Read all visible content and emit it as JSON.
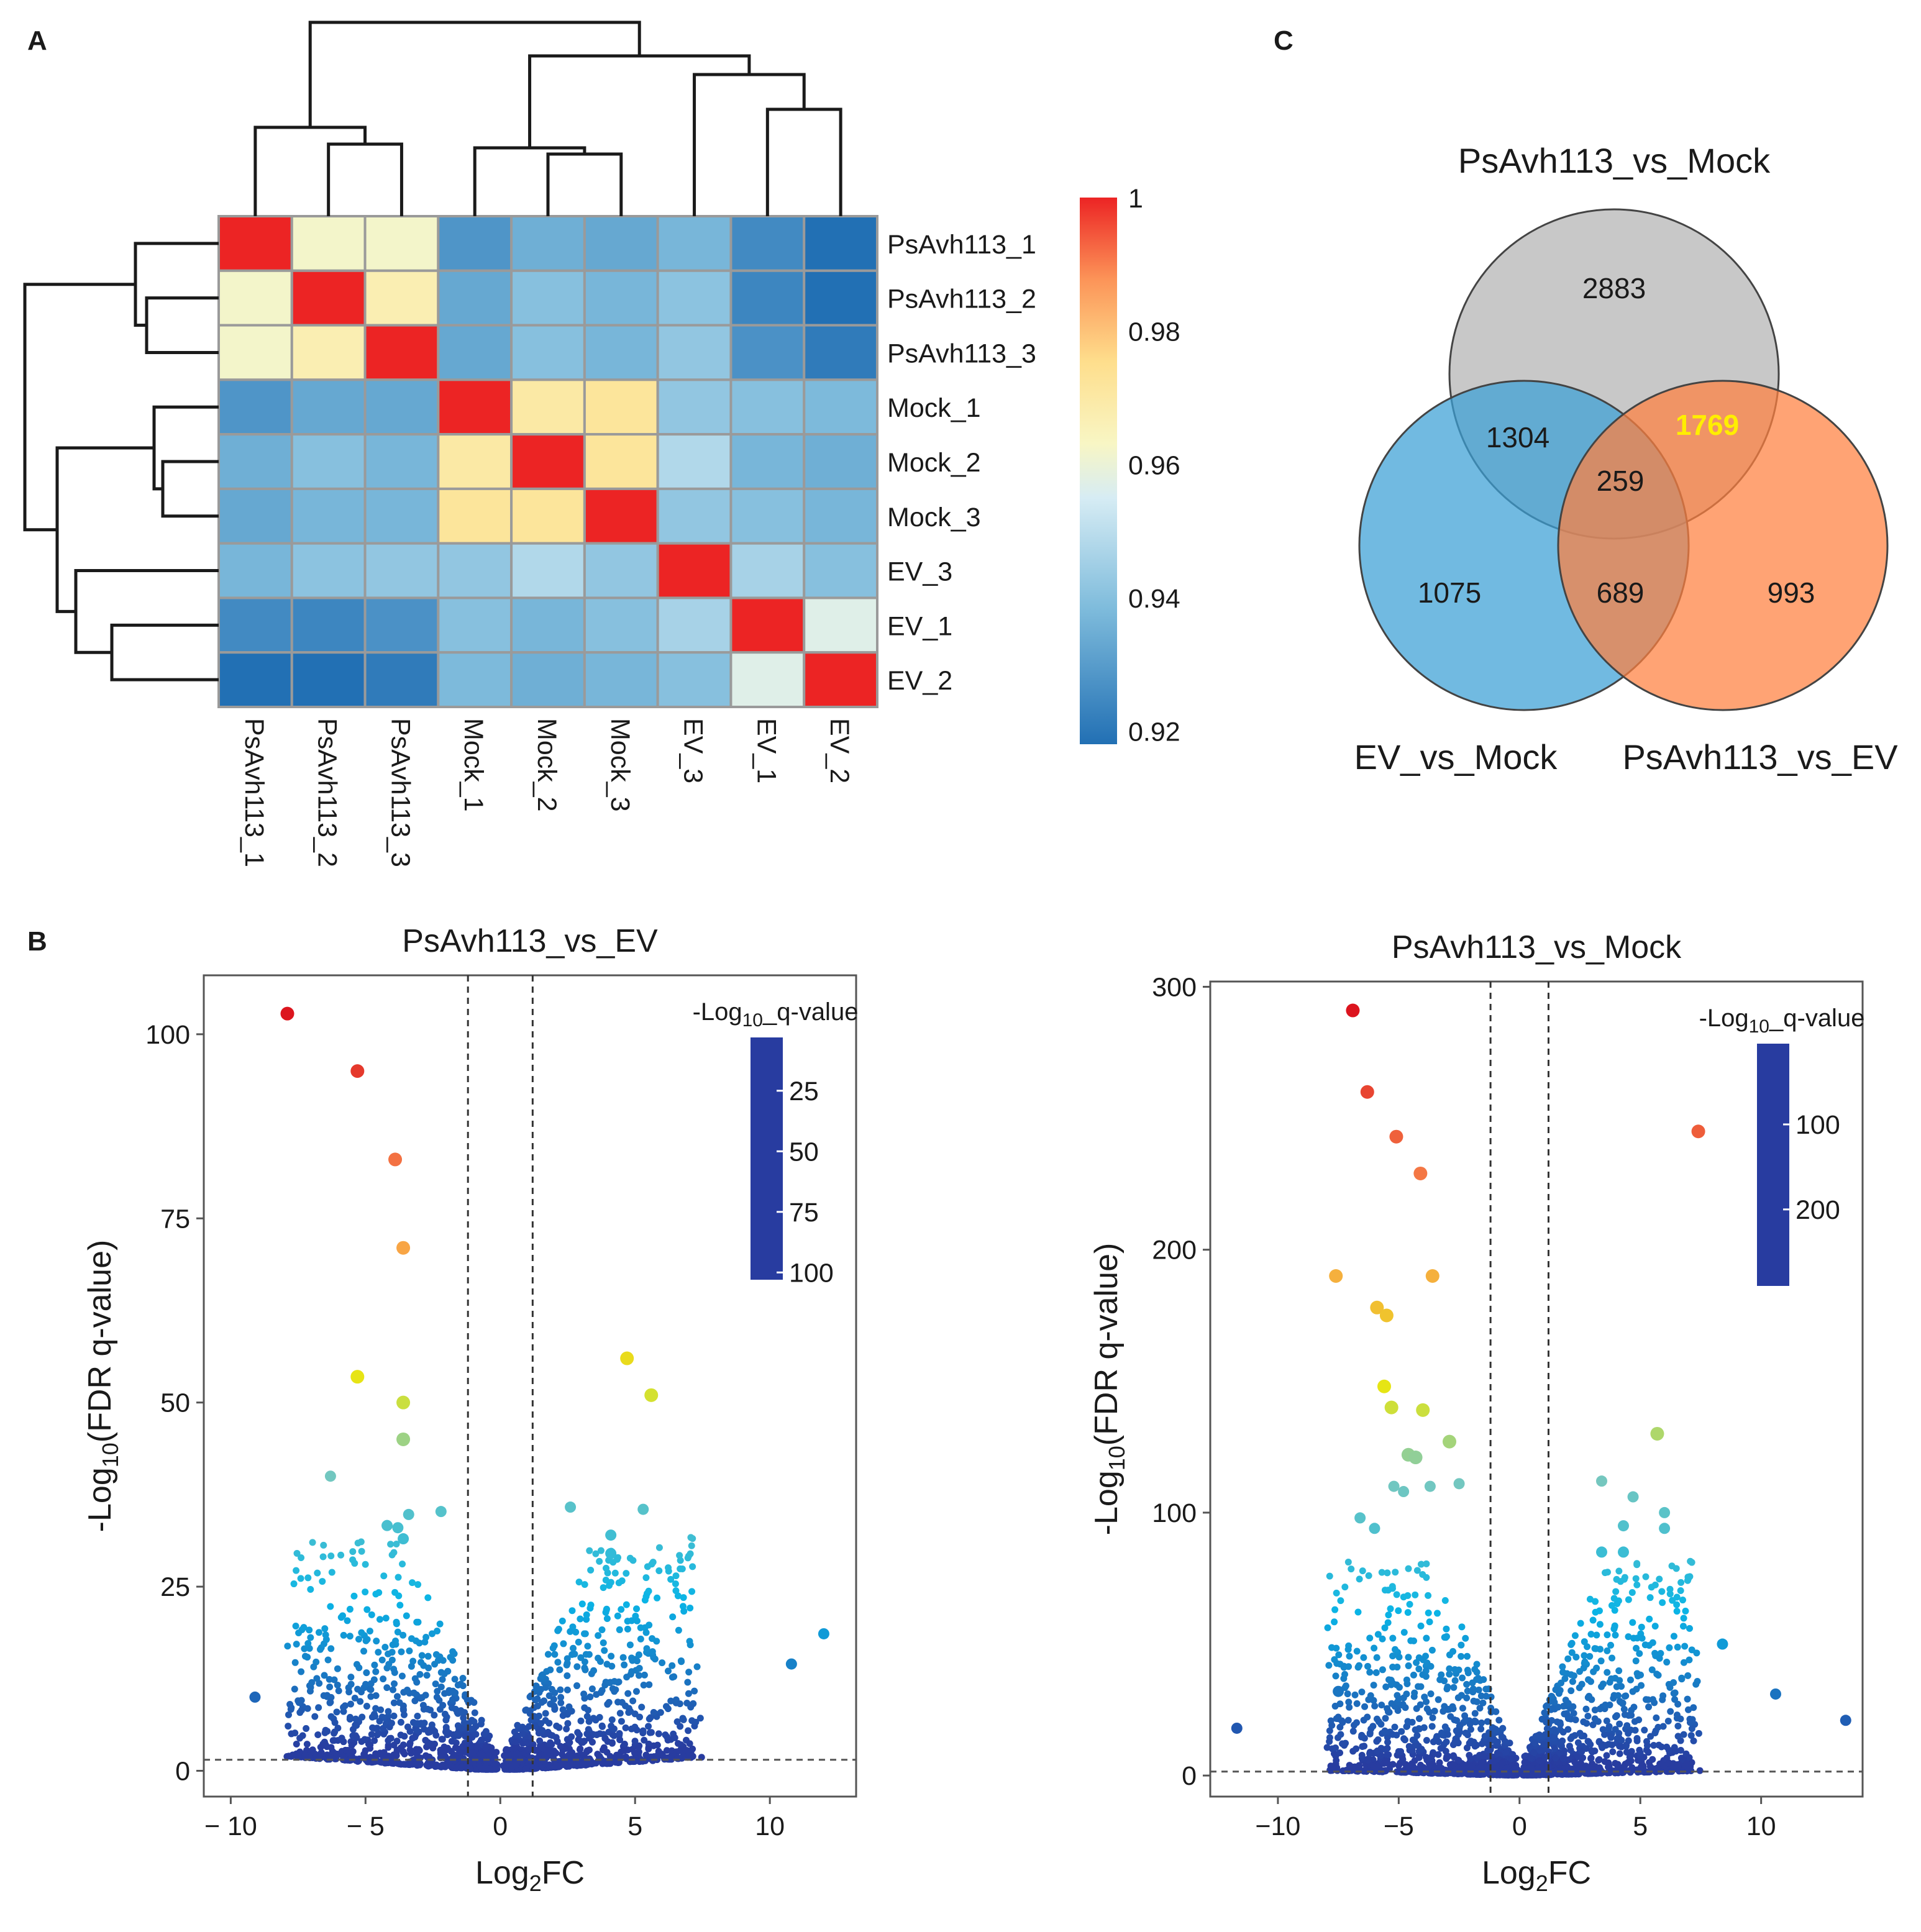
{
  "panel_labels": {
    "a": "A",
    "b": "B",
    "c": "C"
  },
  "chart_data": [
    {
      "id": "A",
      "type": "heatmap",
      "title": "",
      "rows": [
        "PsAvh113_1",
        "PsAvh113_2",
        "PsAvh113_3",
        "Mock_1",
        "Mock_2",
        "Mock_3",
        "EV_3",
        "EV_1",
        "EV_2"
      ],
      "cols": [
        "PsAvh113_1",
        "PsAvh113_2",
        "PsAvh113_3",
        "Mock_1",
        "Mock_2",
        "Mock_3",
        "EV_3",
        "EV_1",
        "EV_2"
      ],
      "values": [
        [
          1.0,
          0.962,
          0.962,
          0.928,
          0.935,
          0.933,
          0.937,
          0.925,
          0.918
        ],
        [
          0.962,
          1.0,
          0.967,
          0.933,
          0.94,
          0.937,
          0.941,
          0.924,
          0.915
        ],
        [
          0.962,
          0.967,
          1.0,
          0.933,
          0.94,
          0.937,
          0.942,
          0.927,
          0.921
        ],
        [
          0.928,
          0.933,
          0.933,
          1.0,
          0.97,
          0.972,
          0.942,
          0.94,
          0.938
        ],
        [
          0.935,
          0.94,
          0.937,
          0.97,
          1.0,
          0.972,
          0.948,
          0.937,
          0.935
        ],
        [
          0.933,
          0.937,
          0.937,
          0.972,
          0.972,
          1.0,
          0.942,
          0.94,
          0.937
        ],
        [
          0.937,
          0.941,
          0.942,
          0.942,
          0.948,
          0.942,
          1.0,
          0.946,
          0.94
        ],
        [
          0.925,
          0.924,
          0.927,
          0.94,
          0.937,
          0.94,
          0.946,
          1.0,
          0.957
        ],
        [
          0.918,
          0.915,
          0.921,
          0.938,
          0.935,
          0.937,
          0.94,
          0.957,
          1.0
        ]
      ],
      "colorbar": {
        "range": [
          0.918,
          1.0
        ],
        "ticks": [
          "1",
          "0.98",
          "0.96",
          "0.94",
          "0.92"
        ],
        "tick_values": [
          1.0,
          0.98,
          0.96,
          0.94,
          0.92
        ]
      },
      "dendrogram": "hierarchical clustering on rows and columns"
    },
    {
      "id": "B-left",
      "type": "scatter",
      "title": "PsAvh113_vs_EV",
      "xlabel": "Log2FC",
      "ylabel": "-Log10(FDR q-value)",
      "xlim": [
        -11,
        13.2
      ],
      "ylim": [
        -3.5,
        108
      ],
      "x_ticks": [
        -10,
        -5,
        0,
        5,
        10
      ],
      "x_tick_labels": [
        "− 10",
        "− 5",
        "0",
        "5",
        "10"
      ],
      "y_ticks": [
        0,
        25,
        50,
        75,
        100
      ],
      "thresholds": {
        "log2fc": [
          -1.2,
          1.2
        ],
        "neg_log10_q": 1.5
      },
      "legend_title": "-Log10_q-value",
      "colorbar_ticks": [
        25,
        50,
        75,
        100
      ],
      "colorbar_range": [
        3,
        103
      ],
      "highlighted_points": [
        {
          "x": -7.9,
          "y": 102.8
        },
        {
          "x": -5.3,
          "y": 95.0
        },
        {
          "x": -3.9,
          "y": 83.0
        },
        {
          "x": -3.6,
          "y": 71.0
        },
        {
          "x": 4.7,
          "y": 56.0
        },
        {
          "x": 5.6,
          "y": 51.0
        },
        {
          "x": -5.3,
          "y": 53.5
        },
        {
          "x": -3.6,
          "y": 50.0
        },
        {
          "x": -3.6,
          "y": 45.0
        },
        {
          "x": -6.3,
          "y": 40.0
        },
        {
          "x": -2.2,
          "y": 35.2
        },
        {
          "x": 2.6,
          "y": 35.8
        },
        {
          "x": 5.3,
          "y": 35.5
        },
        {
          "x": 4.1,
          "y": 32.0
        },
        {
          "x": 4.1,
          "y": 29.5
        },
        {
          "x": -4.2,
          "y": 33.3
        },
        {
          "x": -3.8,
          "y": 33.0
        },
        {
          "x": -3.4,
          "y": 34.8
        },
        {
          "x": -3.6,
          "y": 31.5
        },
        {
          "x": 12.0,
          "y": 18.6
        },
        {
          "x": 10.8,
          "y": 14.5
        },
        {
          "x": -9.1,
          "y": 10.0
        }
      ],
      "cloud": {
        "left_center": -3,
        "right_center": 3,
        "n_points_per_side": 900
      }
    },
    {
      "id": "B-right",
      "type": "scatter",
      "title": "PsAvh113_vs_Mock",
      "xlabel": "Log2FC",
      "ylabel": "-Log10(FDR q-value)",
      "xlim": [
        -12.8,
        14.2
      ],
      "ylim": [
        -8,
        302
      ],
      "x_ticks": [
        -10,
        -5,
        0,
        5,
        10
      ],
      "x_tick_labels": [
        "−10",
        "−5",
        "0",
        "5",
        "10"
      ],
      "y_ticks": [
        0,
        100,
        200,
        300
      ],
      "thresholds": {
        "log2fc": [
          -1.2,
          1.2
        ],
        "neg_log10_q": 1.5
      },
      "legend_title": "-Log10_q-value",
      "colorbar_ticks": [
        100,
        200
      ],
      "colorbar_range": [
        5,
        290
      ],
      "highlighted_points": [
        {
          "x": -6.9,
          "y": 291.0
        },
        {
          "x": -6.3,
          "y": 260.0
        },
        {
          "x": -5.1,
          "y": 243.0
        },
        {
          "x": -4.1,
          "y": 229.0
        },
        {
          "x": 7.4,
          "y": 245.0
        },
        {
          "x": -7.6,
          "y": 190.0
        },
        {
          "x": -3.6,
          "y": 190.0
        },
        {
          "x": -5.9,
          "y": 178.0
        },
        {
          "x": -5.5,
          "y": 175.0
        },
        {
          "x": -5.6,
          "y": 148.0
        },
        {
          "x": -5.3,
          "y": 140.0
        },
        {
          "x": -4.0,
          "y": 139.0
        },
        {
          "x": -2.9,
          "y": 127.0
        },
        {
          "x": -4.6,
          "y": 122.0
        },
        {
          "x": -4.3,
          "y": 121.0
        },
        {
          "x": 5.7,
          "y": 130.0
        },
        {
          "x": -5.2,
          "y": 110.0
        },
        {
          "x": -4.8,
          "y": 108.0
        },
        {
          "x": -3.7,
          "y": 110.0
        },
        {
          "x": -2.5,
          "y": 111.0
        },
        {
          "x": 3.4,
          "y": 112.0
        },
        {
          "x": 4.7,
          "y": 106.0
        },
        {
          "x": 6.0,
          "y": 100.0
        },
        {
          "x": 6.0,
          "y": 94.0
        },
        {
          "x": 4.3,
          "y": 95.0
        },
        {
          "x": -6.6,
          "y": 98.0
        },
        {
          "x": -6.0,
          "y": 94.0
        },
        {
          "x": 3.4,
          "y": 85.0
        },
        {
          "x": 4.3,
          "y": 85.0
        },
        {
          "x": 8.4,
          "y": 50.0
        },
        {
          "x": 10.6,
          "y": 31.0
        },
        {
          "x": -11.7,
          "y": 18.0
        },
        {
          "x": 13.5,
          "y": 21.0
        },
        {
          "x": -7.5,
          "y": 32.0
        }
      ],
      "cloud": {
        "left_center": -3,
        "right_center": 3,
        "n_points_per_side": 900
      }
    },
    {
      "id": "C",
      "type": "venn",
      "sets": [
        {
          "name": "PsAvh113_vs_Mock",
          "color": "#b3b3b3"
        },
        {
          "name": "EV_vs_Mock",
          "color": "#3a9fd6"
        },
        {
          "name": "PsAvh113_vs_EV",
          "color": "#ff7f3f"
        }
      ],
      "regions": {
        "mock_only": "2883",
        "ev_mock_only": "1075",
        "ev_only": "993",
        "mock_and_ev_mock": "1304",
        "mock_and_ev": "1769",
        "ev_mock_and_ev": "689",
        "all_three": "259"
      },
      "highlight_color": "#ffee00"
    }
  ]
}
